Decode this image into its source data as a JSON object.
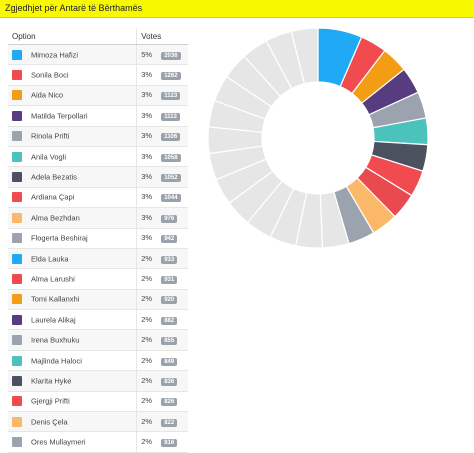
{
  "header": {
    "title": "Zgjedhjet për Antarë të Bërthamës"
  },
  "table": {
    "col_option": "Option",
    "col_votes": "Votes",
    "rows": [
      {
        "name": "Mimoza Hafizi",
        "pct": "5%",
        "votes": "2036",
        "color": "#20a9f5"
      },
      {
        "name": "Sonila Boci",
        "pct": "3%",
        "votes": "1262",
        "color": "#f24b4f"
      },
      {
        "name": "Aida Nico",
        "pct": "3%",
        "votes": "1123",
        "color": "#f29d13"
      },
      {
        "name": "Matilda Terpollari",
        "pct": "3%",
        "votes": "1113",
        "color": "#573c7f"
      },
      {
        "name": "Rinola Prifti",
        "pct": "3%",
        "votes": "1106",
        "color": "#9ba3af"
      },
      {
        "name": "Anila Vogli",
        "pct": "3%",
        "votes": "1058",
        "color": "#4bc2bc"
      },
      {
        "name": "Adela Bezatis",
        "pct": "3%",
        "votes": "1052",
        "color": "#4c5160"
      },
      {
        "name": "Ardiana Çapi",
        "pct": "3%",
        "votes": "1044",
        "color": "#f24b4f"
      },
      {
        "name": "Alma Bezhdan",
        "pct": "3%",
        "votes": "976",
        "color": "#fbb868"
      },
      {
        "name": "Flogerta Beshiraj",
        "pct": "3%",
        "votes": "942",
        "color": "#9ba3af"
      },
      {
        "name": "Elda Lauka",
        "pct": "2%",
        "votes": "933",
        "color": "#20a9f5"
      },
      {
        "name": "Alma Larushi",
        "pct": "2%",
        "votes": "931",
        "color": "#f24b4f"
      },
      {
        "name": "Tomi Kallanxhi",
        "pct": "2%",
        "votes": "920",
        "color": "#f29d13"
      },
      {
        "name": "Laurela Alikaj",
        "pct": "2%",
        "votes": "882",
        "color": "#573c7f"
      },
      {
        "name": "Irena Buxhuku",
        "pct": "2%",
        "votes": "855",
        "color": "#9ba3af"
      },
      {
        "name": "Majlinda Haloci",
        "pct": "2%",
        "votes": "849",
        "color": "#4bc2bc"
      },
      {
        "name": "Klarita Hyke",
        "pct": "2%",
        "votes": "836",
        "color": "#4c5160"
      },
      {
        "name": "Gjergji Prifti",
        "pct": "2%",
        "votes": "826",
        "color": "#f24b4f"
      },
      {
        "name": "Denis Çela",
        "pct": "2%",
        "votes": "822",
        "color": "#fbb868"
      },
      {
        "name": "Ores Mullaymeri",
        "pct": "2%",
        "votes": "816",
        "color": "#9ba3af"
      }
    ]
  },
  "chart_data": {
    "type": "pie",
    "style": "donut",
    "highlighted_colors": [
      "#20a9f5",
      "#f24b4f",
      "#f29d13",
      "#573c7f",
      "#9ba3af",
      "#4bc2bc",
      "#4c5160",
      "#f24b4f",
      "#e84a50",
      "#fbb868",
      "#9ba3af"
    ],
    "other_slice_color": "#e6e6e6",
    "slices": [
      {
        "label": "Mimoza Hafizi",
        "value": 5
      },
      {
        "label": "Sonila Boci",
        "value": 3
      },
      {
        "label": "Aida Nico",
        "value": 3
      },
      {
        "label": "Matilda Terpollari",
        "value": 3
      },
      {
        "label": "Rinola Prifti",
        "value": 3
      },
      {
        "label": "Anila Vogli",
        "value": 3
      },
      {
        "label": "Adela Bezatis",
        "value": 3
      },
      {
        "label": "Ardiana Çapi",
        "value": 3
      },
      {
        "label": "",
        "value": 3
      },
      {
        "label": "Alma Bezhdan",
        "value": 3
      },
      {
        "label": "Flogerta Beshiraj",
        "value": 3
      },
      {
        "label": "",
        "value": 3
      },
      {
        "label": "",
        "value": 3
      },
      {
        "label": "",
        "value": 3
      },
      {
        "label": "",
        "value": 3
      },
      {
        "label": "",
        "value": 3
      },
      {
        "label": "",
        "value": 3
      },
      {
        "label": "",
        "value": 3
      },
      {
        "label": "",
        "value": 3
      },
      {
        "label": "",
        "value": 3
      },
      {
        "label": "",
        "value": 3
      },
      {
        "label": "",
        "value": 3
      },
      {
        "label": "",
        "value": 3
      },
      {
        "label": "",
        "value": 3
      },
      {
        "label": "",
        "value": 3
      }
    ]
  }
}
